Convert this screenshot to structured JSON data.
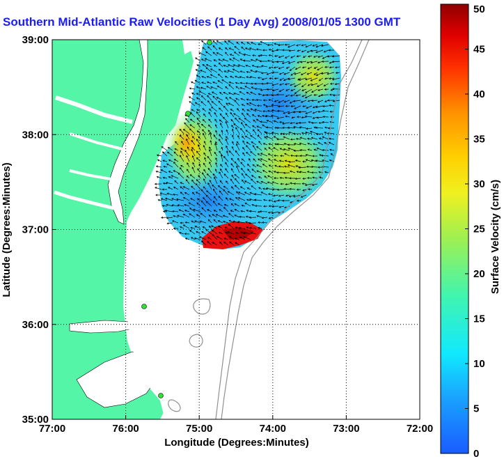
{
  "chart_data": {
    "type": "heatmap",
    "title": "Southern Mid-Atlantic Raw Velocities (1 Day Avg) 2008/01/05 1300 GMT",
    "xlabel": "Longitude (Degrees:Minutes)",
    "ylabel": "Latitude (Degrees:Minutes)",
    "x_ticks": [
      "77:00",
      "76:00",
      "75:00",
      "74:00",
      "73:00",
      "72:00"
    ],
    "y_ticks": [
      "39:00",
      "38:00",
      "37:00",
      "36:00",
      "35:00"
    ],
    "xlim": [
      -77,
      -72
    ],
    "ylim": [
      35,
      39
    ],
    "grid": "dotted",
    "colorbar": {
      "label": "Surface Velocity (cm/s)",
      "range": [
        0,
        50
      ],
      "ticks": [
        0,
        5,
        10,
        15,
        20,
        25,
        30,
        35,
        40,
        45,
        50
      ]
    },
    "colors": {
      "land": "#55f5a8",
      "vector": "#000000",
      "station": "#33dd33",
      "bathymetry": "#909090"
    }
  }
}
